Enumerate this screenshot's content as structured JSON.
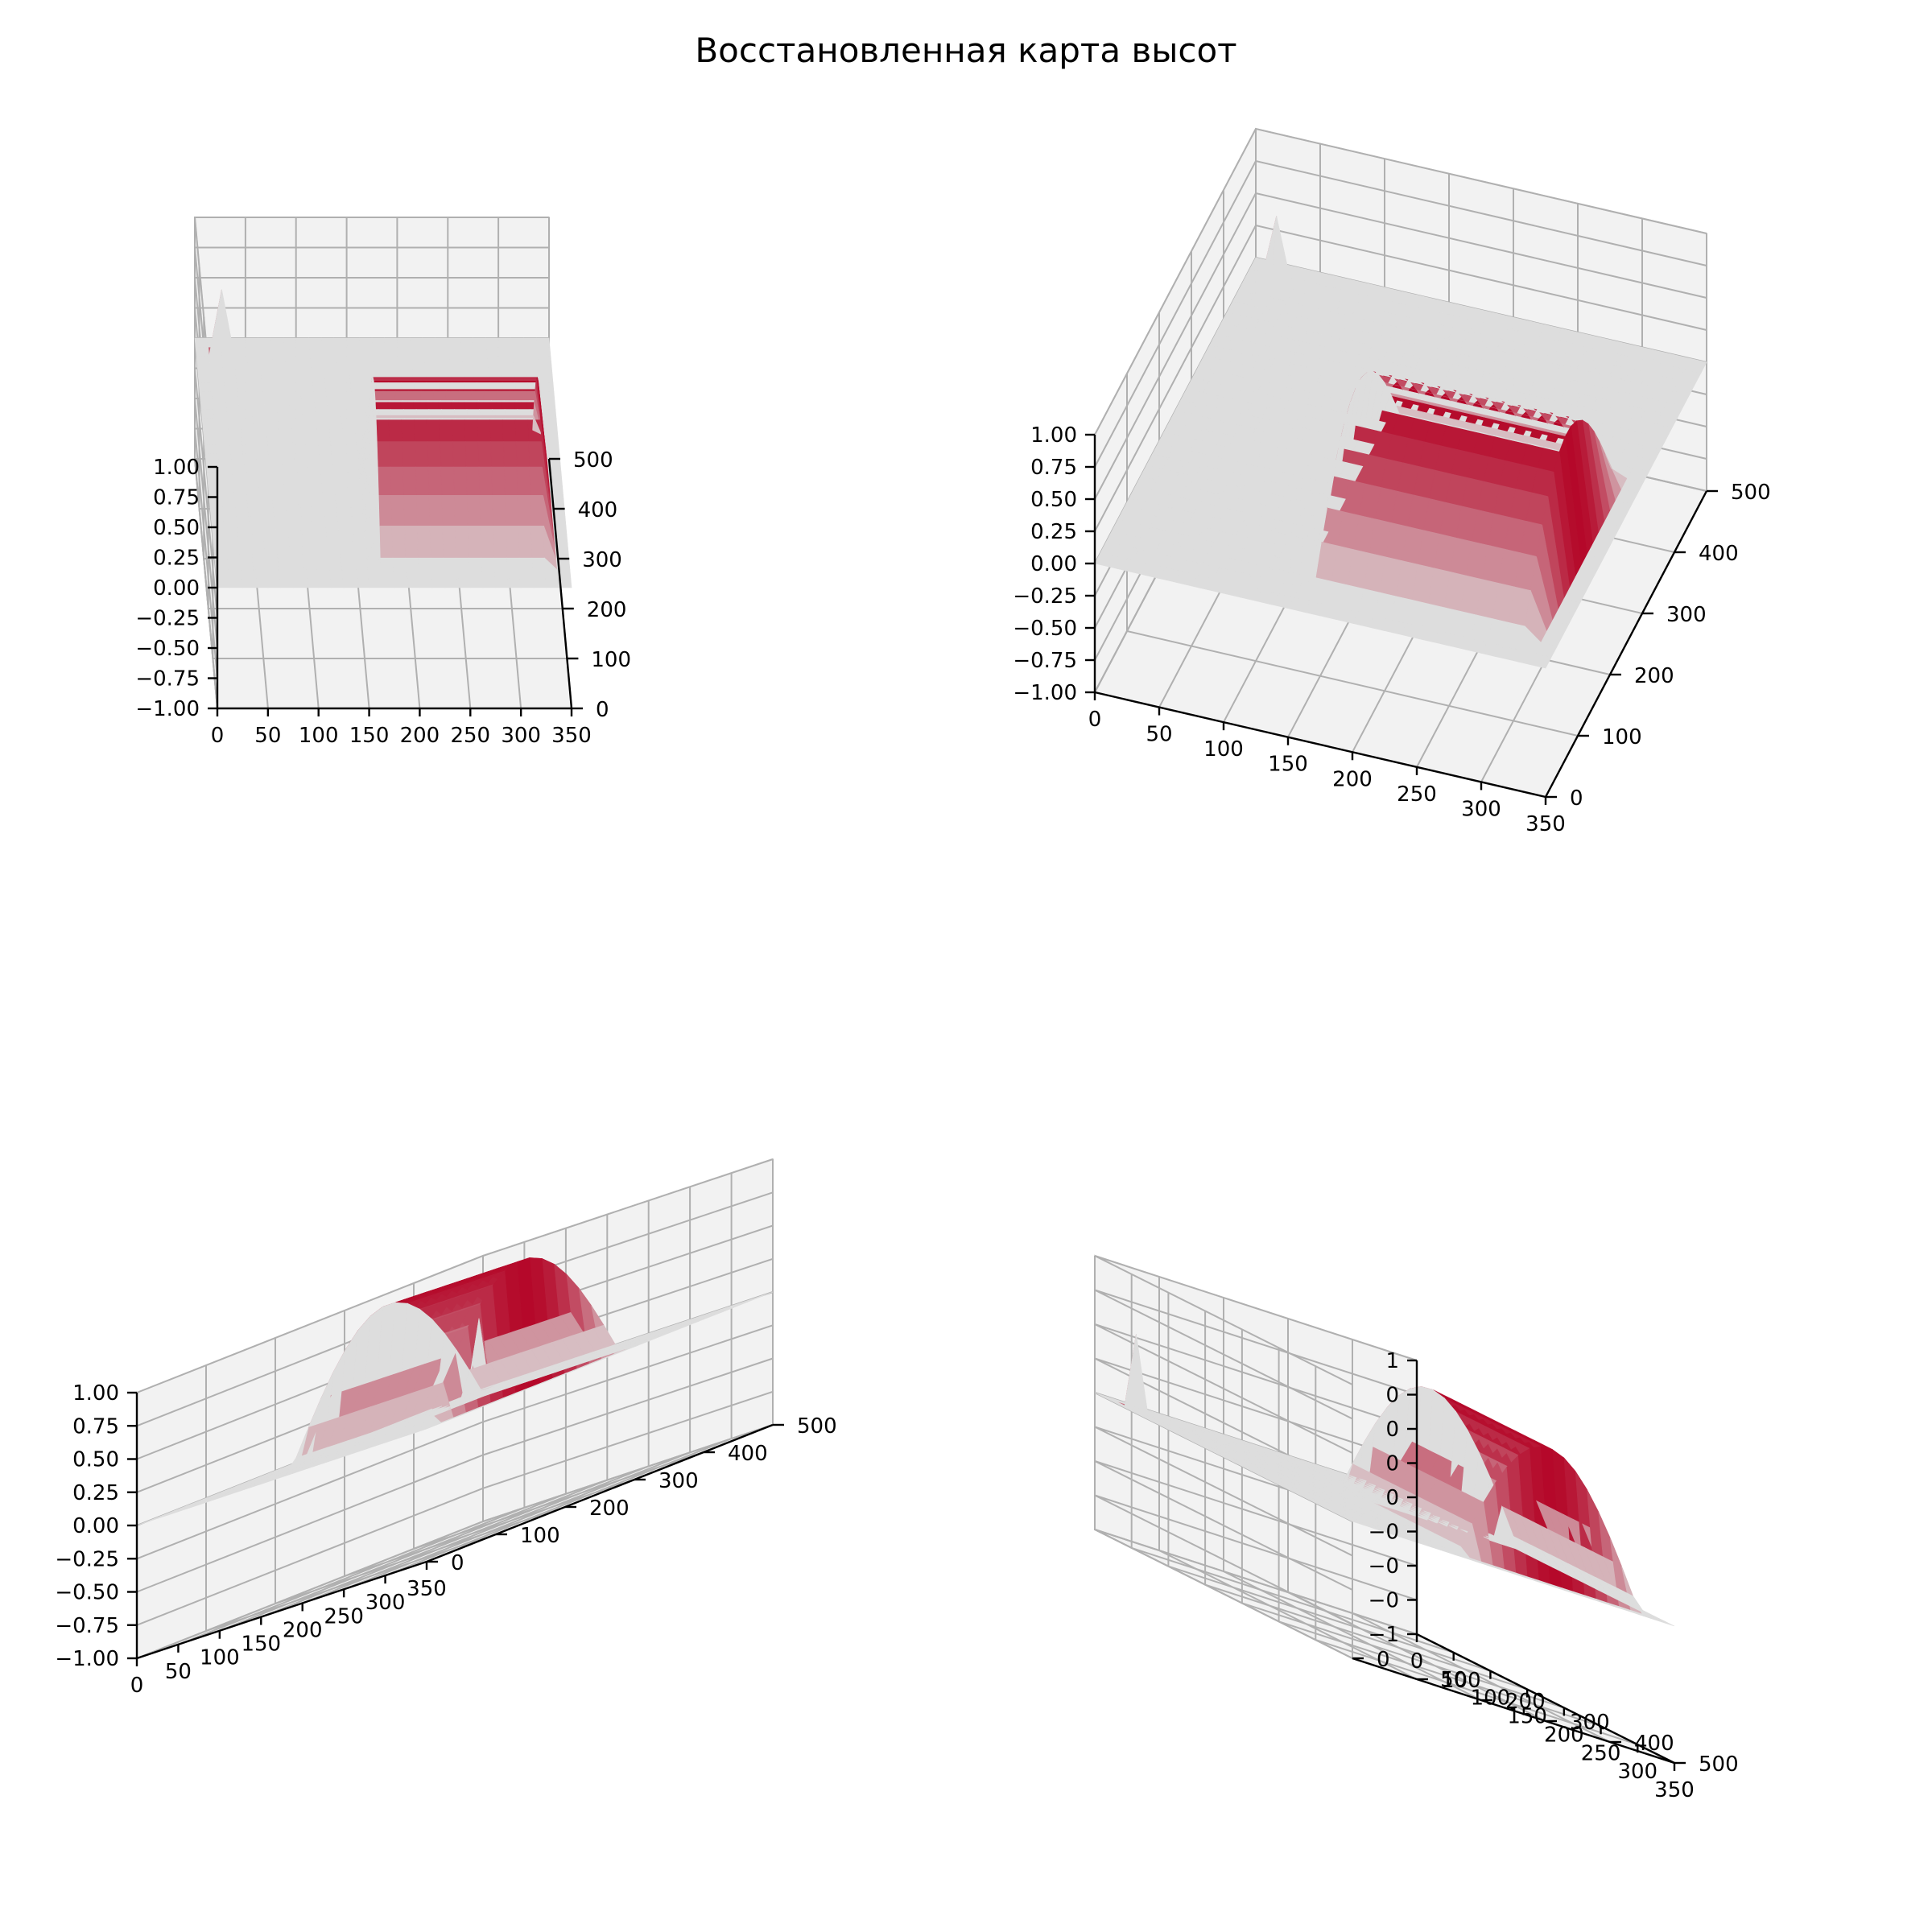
{
  "figure": {
    "title": "Восстановленная карта высот"
  },
  "colors": {
    "surface_low": "#3b4cc0",
    "surface_mid": "#dddddd",
    "surface_high": "#b40426",
    "pane": "#f2f2f2",
    "grid": "#b0b0b0",
    "colormap": "coolwarm"
  },
  "chart_data": [
    {
      "type": "surface3d",
      "title": "",
      "view": "front-left",
      "x_ticks": [
        "0",
        "50",
        "100",
        "150",
        "200",
        "250",
        "300",
        "350"
      ],
      "y_ticks": [
        "0",
        "100",
        "200",
        "300",
        "400",
        "500"
      ],
      "z_ticks": [
        "1.00",
        "0.75",
        "0.50",
        "0.25",
        "0.00",
        "−0.25",
        "−0.50",
        "−0.75",
        "−1.00"
      ],
      "xlim": [
        0,
        350
      ],
      "ylim": [
        0,
        500
      ],
      "zlim": [
        -1,
        1
      ],
      "grid": true
    },
    {
      "type": "surface3d",
      "title": "",
      "view": "elevated-right",
      "x_ticks": [
        "0",
        "50",
        "100",
        "150",
        "200",
        "250",
        "300",
        "350"
      ],
      "y_ticks": [
        "0",
        "100",
        "200",
        "300",
        "400",
        "500"
      ],
      "z_ticks": [
        "1.00",
        "0.75",
        "0.50",
        "0.25",
        "0.00",
        "−0.25",
        "−0.50",
        "−0.75",
        "−1.00"
      ],
      "xlim": [
        0,
        350
      ],
      "ylim": [
        0,
        500
      ],
      "zlim": [
        -1,
        1
      ],
      "grid": true
    },
    {
      "type": "surface3d",
      "title": "",
      "view": "diagonal-left",
      "x_ticks": [
        "0",
        "50",
        "100",
        "150",
        "200",
        "250",
        "300",
        "350"
      ],
      "y_ticks": [
        "0",
        "100",
        "200",
        "300",
        "400",
        "500"
      ],
      "z_ticks": [
        "1.00",
        "0.75",
        "0.50",
        "0.25",
        "0.00",
        "−0.25",
        "−0.50",
        "−0.75",
        "−1.00"
      ],
      "xlim": [
        0,
        350
      ],
      "ylim": [
        0,
        500
      ],
      "zlim": [
        -1,
        1
      ],
      "grid": true
    },
    {
      "type": "surface3d",
      "title": "",
      "view": "diagonal-right",
      "x_ticks": [
        "0",
        "50",
        "100",
        "150",
        "200",
        "250",
        "300",
        "350"
      ],
      "y_ticks": [
        "500",
        "400",
        "300",
        "200",
        "100",
        "0"
      ],
      "z_ticks": [
        "1",
        "0",
        "0",
        "0",
        "0",
        "−0",
        "−0",
        "−0",
        "−1"
      ],
      "xlim": [
        0,
        350
      ],
      "ylim": [
        0,
        500
      ],
      "zlim": [
        -1,
        1
      ],
      "grid": true
    }
  ]
}
